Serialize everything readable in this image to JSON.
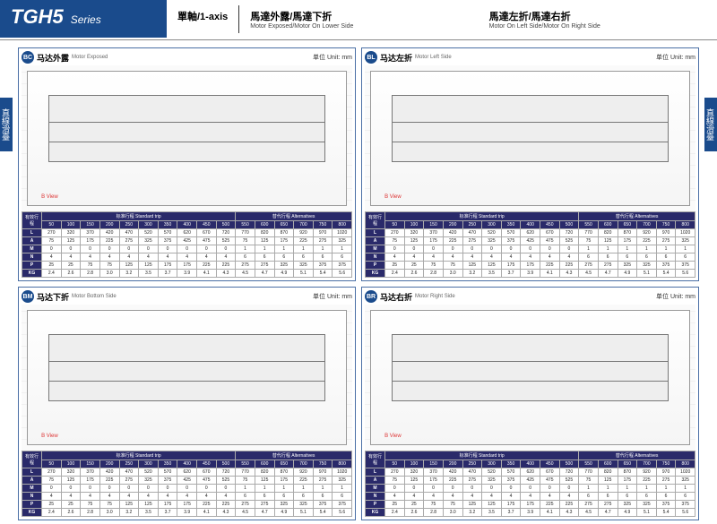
{
  "header": {
    "model": "TGH5",
    "series": "Series",
    "axis_cn": "單軸/1-axis",
    "config1_cn": "馬達外露/馬達下折",
    "config1_en": "Motor Exposed/Motor On Lower Side",
    "config2_cn": "馬達左折/馬達右折",
    "config2_en": "Motor On Left Side/Motor On Right Side"
  },
  "side_tab": "直線滑臺",
  "unit_label": "单位 Unit: mm",
  "quads": [
    {
      "badge": "BC",
      "title_cn": "马达外露",
      "title_en": "Motor Exposed"
    },
    {
      "badge": "BL",
      "title_cn": "马达左折",
      "title_en": "Motor Left Side"
    },
    {
      "badge": "BM",
      "title_cn": "马达下折",
      "title_en": "Motor Bottom Side"
    },
    {
      "badge": "BR",
      "title_cn": "马达右折",
      "title_en": "Motor Right Side"
    }
  ],
  "table": {
    "group_labels": {
      "std": "标准行程 Standard trip",
      "alt": "替代行程 Alternatives"
    },
    "row_header_label": "有效行程",
    "strokes": [
      "50",
      "100",
      "150",
      "200",
      "250",
      "300",
      "350",
      "400",
      "450",
      "500",
      "550",
      "600",
      "650",
      "700",
      "750",
      "800"
    ],
    "rows": [
      {
        "label": "L",
        "vals": [
          "270",
          "320",
          "370",
          "420",
          "470",
          "520",
          "570",
          "620",
          "670",
          "720",
          "770",
          "820",
          "870",
          "920",
          "970",
          "1020"
        ]
      },
      {
        "label": "A",
        "vals": [
          "75",
          "125",
          "175",
          "225",
          "275",
          "325",
          "375",
          "425",
          "475",
          "525",
          "75",
          "125",
          "175",
          "225",
          "275",
          "325"
        ]
      },
      {
        "label": "M",
        "vals": [
          "0",
          "0",
          "0",
          "0",
          "0",
          "0",
          "0",
          "0",
          "0",
          "0",
          "1",
          "1",
          "1",
          "1",
          "1",
          "1"
        ]
      },
      {
        "label": "N",
        "vals": [
          "4",
          "4",
          "4",
          "4",
          "4",
          "4",
          "4",
          "4",
          "4",
          "4",
          "6",
          "6",
          "6",
          "6",
          "6",
          "6"
        ]
      },
      {
        "label": "P",
        "vals": [
          "25",
          "25",
          "75",
          "75",
          "125",
          "125",
          "175",
          "175",
          "225",
          "225",
          "275",
          "275",
          "325",
          "325",
          "375",
          "375"
        ]
      },
      {
        "label": "KG",
        "vals": [
          "2.4",
          "2.6",
          "2.8",
          "3.0",
          "3.2",
          "3.5",
          "3.7",
          "3.9",
          "4.1",
          "4.3",
          "4.5",
          "4.7",
          "4.9",
          "5.1",
          "5.4",
          "5.6"
        ]
      }
    ]
  },
  "styling": {
    "brand_color": "#1a4b8c",
    "table_header_bg": "#2a2a6a",
    "border_color": "#4a6fa5",
    "red_annotation": "#d33"
  }
}
